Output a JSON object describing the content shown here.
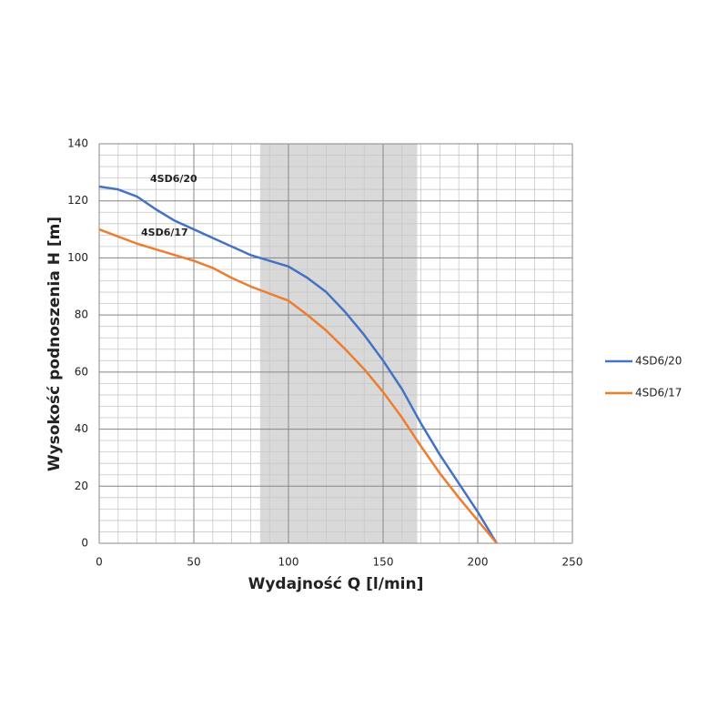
{
  "chart_data": {
    "type": "line",
    "x_label": "Wydajność Q [l/min]",
    "y_label": "Wysokość podnoszenia H [m]",
    "x": [
      0,
      10,
      20,
      30,
      40,
      50,
      60,
      70,
      80,
      90,
      100,
      110,
      120,
      130,
      140,
      150,
      160,
      170,
      180,
      190,
      200,
      210
    ],
    "series": [
      {
        "name": "4SD6/20",
        "color": "#4472c4",
        "values": [
          125,
          124,
          121.5,
          117,
          113,
          110,
          107,
          104,
          101,
          99,
          97,
          93,
          88,
          81,
          73,
          64,
          54,
          42,
          31,
          21,
          11,
          0
        ]
      },
      {
        "name": "4SD6/17",
        "color": "#ed7d31",
        "values": [
          110,
          107.5,
          105,
          103,
          101,
          99,
          96.5,
          93,
          90,
          87.5,
          85,
          80,
          74.5,
          68,
          61,
          53,
          44,
          34,
          24.5,
          16,
          8,
          0
        ]
      }
    ],
    "annotations": [
      "4SD6/20",
      "4SD6/17"
    ],
    "xlim": [
      0,
      250
    ],
    "ylim": [
      0,
      140
    ],
    "xticks": [
      0,
      50,
      100,
      150,
      200,
      250
    ],
    "yticks": [
      0,
      20,
      40,
      60,
      80,
      100,
      120,
      140
    ],
    "minor_grid": {
      "x": 10,
      "y": 4
    },
    "shaded_region": [
      85,
      168
    ],
    "shaded_color": "#d9d9d9",
    "grid": true,
    "legend": "right"
  }
}
